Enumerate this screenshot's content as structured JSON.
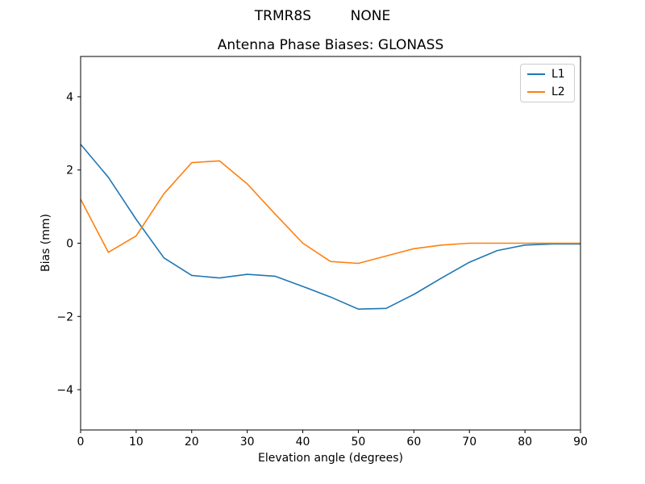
{
  "figure": {
    "background": "#ffffff"
  },
  "chart_data": {
    "type": "line",
    "suptitle": "TRMR8S         NONE",
    "title": "Antenna Phase Biases: GLONASS",
    "xlabel": "Elevation angle (degrees)",
    "ylabel": "Bias (mm)",
    "xlim": [
      0,
      90
    ],
    "ylim": [
      -5.1,
      5.1
    ],
    "xticks": [
      0,
      10,
      20,
      30,
      40,
      50,
      60,
      70,
      80,
      90
    ],
    "yticks": [
      -4,
      -2,
      0,
      2,
      4
    ],
    "grid": false,
    "legend": {
      "position": "upper right",
      "entries": [
        "L1",
        "L2"
      ]
    },
    "x": [
      0,
      5,
      10,
      15,
      20,
      25,
      30,
      35,
      40,
      45,
      50,
      55,
      60,
      65,
      70,
      75,
      80,
      85,
      90
    ],
    "series": [
      {
        "name": "L1",
        "color": "#1f77b4",
        "values": [
          2.7,
          1.8,
          0.65,
          -0.4,
          -0.88,
          -0.95,
          -0.85,
          -0.9,
          -1.18,
          -1.47,
          -1.8,
          -1.78,
          -1.4,
          -0.95,
          -0.52,
          -0.2,
          -0.05,
          -0.02,
          -0.02
        ]
      },
      {
        "name": "L2",
        "color": "#ff7f0e",
        "values": [
          1.2,
          -0.25,
          0.2,
          1.35,
          2.2,
          2.25,
          1.62,
          0.8,
          0.0,
          -0.5,
          -0.55,
          -0.35,
          -0.15,
          -0.05,
          0.0,
          0.0,
          0.0,
          0.0,
          0.0
        ]
      }
    ],
    "line_width": 1.6,
    "axis_color": "#000000"
  }
}
